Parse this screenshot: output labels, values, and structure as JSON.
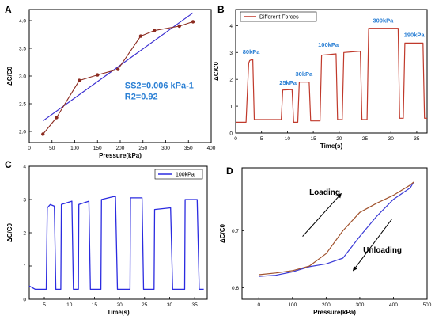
{
  "chart_data": [
    {
      "panel": "A",
      "type": "scatter",
      "xlabel": "Pressure(kPa)",
      "ylabel": "ΔC/C0",
      "xlim": [
        0,
        400
      ],
      "ylim": [
        1.8,
        4.2
      ],
      "xticks": [
        "0",
        "50",
        "100",
        "150",
        "200",
        "250",
        "300",
        "350",
        "400"
      ],
      "yticks": [
        "2.0",
        "2.5",
        "3.0",
        "3.5",
        "4.0"
      ],
      "series": [
        {
          "role": "data",
          "x": [
            30,
            60,
            110,
            150,
            195,
            245,
            275,
            330,
            360
          ],
          "y": [
            1.95,
            2.25,
            2.92,
            3.02,
            3.12,
            3.72,
            3.82,
            3.9,
            3.98
          ],
          "color": "#8b2a1f"
        },
        {
          "role": "fit",
          "x": [
            30,
            360
          ],
          "y": [
            2.19,
            4.14
          ],
          "color": "#3b2fd1"
        }
      ],
      "annotations": [
        "SS2=0.006 kPa-1",
        "R2=0.92"
      ]
    },
    {
      "panel": "B",
      "type": "line",
      "xlabel": "Time(s)",
      "ylabel": "ΔC/C0",
      "xlim": [
        0,
        37
      ],
      "ylim": [
        0,
        4.6
      ],
      "xticks": [
        "0",
        "5",
        "10",
        "15",
        "20",
        "25",
        "30",
        "35"
      ],
      "yticks": [
        "0",
        "1",
        "2",
        "3",
        "4"
      ],
      "series": [
        {
          "name": "Different Forces",
          "color": "#c0392b",
          "x": [
            0,
            2,
            2.5,
            2.7,
            3.3,
            3.6,
            4.5,
            8.8,
            9.1,
            10.9,
            11.2,
            12,
            12.3,
            14.2,
            14.5,
            16.3,
            16.6,
            19.4,
            19.7,
            20.6,
            20.9,
            24.1,
            24.4,
            25.4,
            25.7,
            31.4,
            31.7,
            32.4,
            32.7,
            36.2,
            36.5,
            37
          ],
          "y": [
            0.4,
            0.4,
            2.6,
            2.7,
            2.75,
            0.5,
            0.5,
            0.5,
            1.6,
            1.62,
            0.4,
            0.4,
            1.9,
            1.9,
            0.45,
            0.45,
            2.9,
            2.95,
            0.5,
            0.5,
            3.0,
            3.05,
            0.5,
            0.5,
            3.9,
            3.9,
            0.55,
            0.55,
            3.35,
            3.35,
            0.55,
            0.55
          ]
        }
      ],
      "annotations": [
        {
          "text": "80kPa",
          "x": 3,
          "y": 2.95
        },
        {
          "text": "25kPa",
          "x": 10.1,
          "y": 1.8
        },
        {
          "text": "30kPa",
          "x": 13.2,
          "y": 2.12
        },
        {
          "text": "100kPa",
          "x": 17.9,
          "y": 3.22
        },
        {
          "text": "300kPa",
          "x": 28.5,
          "y": 4.12
        },
        {
          "text": "190kPa",
          "x": 34.5,
          "y": 3.58
        }
      ]
    },
    {
      "panel": "C",
      "type": "line",
      "xlabel": "Time(s)",
      "ylabel": "ΔC/C0",
      "xlim": [
        2,
        37.5
      ],
      "ylim": [
        0,
        4
      ],
      "xticks": [
        "5",
        "10",
        "15",
        "20",
        "25",
        "30",
        "35"
      ],
      "yticks": [
        "0",
        "1",
        "2",
        "3",
        "4"
      ],
      "series": [
        {
          "name": "100kPa",
          "color": "#2b2be0",
          "x": [
            2,
            3.2,
            5.4,
            5.6,
            6.2,
            7.0,
            7.3,
            8.3,
            8.4,
            10.5,
            10.8,
            11.8,
            11.9,
            13.9,
            14.2,
            16.3,
            16.4,
            19.2,
            19.6,
            22.1,
            22.2,
            24.5,
            24.8,
            26.9,
            27.0,
            30.2,
            30.6,
            33.0,
            33.1,
            35.5,
            35.9,
            36.8
          ],
          "y": [
            0.4,
            0.3,
            0.3,
            2.75,
            2.85,
            2.8,
            0.3,
            0.3,
            2.85,
            2.95,
            0.3,
            0.3,
            2.85,
            2.95,
            0.3,
            0.3,
            3.0,
            3.1,
            0.3,
            0.3,
            3.05,
            3.05,
            0.3,
            0.3,
            2.7,
            2.75,
            0.3,
            0.3,
            3.0,
            3.0,
            0.3,
            0.3
          ]
        }
      ]
    },
    {
      "panel": "D",
      "type": "line",
      "xlabel": "Pressure(kPa)",
      "ylabel": "ΔC/C0",
      "xlim": [
        -50,
        500
      ],
      "ylim": [
        0.58,
        0.81
      ],
      "xticks": [
        "0",
        "100",
        "200",
        "300",
        "400",
        "500"
      ],
      "yticks": [
        "0.6",
        "0.7"
      ],
      "series": [
        {
          "name": "Loading",
          "color": "#a0522d",
          "x": [
            0,
            50,
            100,
            150,
            200,
            250,
            300,
            350,
            400,
            450,
            460
          ],
          "y": [
            0.623,
            0.626,
            0.63,
            0.638,
            0.66,
            0.7,
            0.732,
            0.748,
            0.762,
            0.78,
            0.785
          ]
        },
        {
          "name": "Unloading",
          "color": "#3b3bd6",
          "x": [
            460,
            450,
            400,
            350,
            300,
            250,
            200,
            150,
            100,
            50,
            0
          ],
          "y": [
            0.785,
            0.775,
            0.755,
            0.725,
            0.69,
            0.652,
            0.642,
            0.637,
            0.628,
            0.622,
            0.62
          ]
        }
      ],
      "annotations": [
        "Loading",
        "Unloading"
      ]
    }
  ],
  "panel_labels": [
    "A",
    "B",
    "C",
    "D"
  ]
}
